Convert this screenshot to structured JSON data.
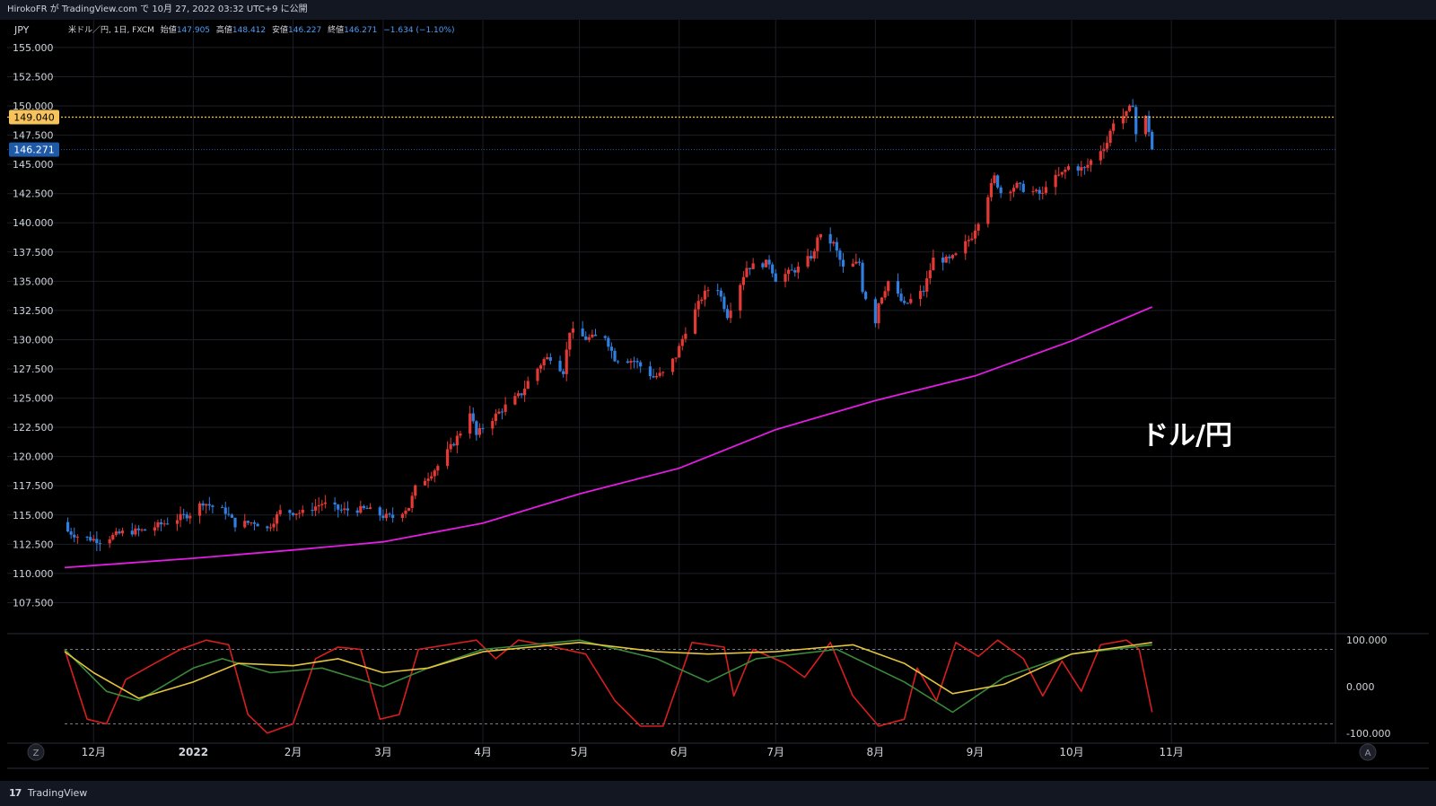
{
  "header": {
    "publish_line": "HirokoFR が TradingView.com で 10月 27, 2022 03:32 UTC+9 に公開"
  },
  "footer": {
    "brand": "TradingView",
    "logo_glyph": "17"
  },
  "chart_data": {
    "type": "candlestick",
    "currency_label": "JPY",
    "instrument": "米ドル／円, 1日, FXCM",
    "ohlc_labels": {
      "open": "始値",
      "high": "高値",
      "low": "安値",
      "close": "終値"
    },
    "ohlc_values": {
      "open": "147.905",
      "high": "148.412",
      "low": "146.227",
      "close": "146.271",
      "change": "−1.634 (−1.10%)"
    },
    "watermark": "ドル/円",
    "price_axis": {
      "ticks": [
        "155.000",
        "152.500",
        "150.000",
        "147.500",
        "145.000",
        "142.500",
        "140.000",
        "137.500",
        "135.000",
        "132.500",
        "130.000",
        "127.500",
        "125.000",
        "122.500",
        "120.000",
        "117.500",
        "115.000",
        "112.500",
        "110.000",
        "107.500"
      ],
      "range": [
        105.0,
        156.3
      ]
    },
    "horizontal_line": {
      "value": 149.04,
      "label": "149.040",
      "color": "#f7c35c"
    },
    "last_price": {
      "value": 146.271,
      "label": "146.271",
      "color": "#1e5aa8"
    },
    "time_axis": {
      "labels": [
        "12月",
        "2022",
        "2月",
        "3月",
        "4月",
        "5月",
        "6月",
        "7月",
        "8月",
        "9月",
        "10月",
        "11月"
      ],
      "label_dates": [
        "2021-12-01",
        "2022-01-01",
        "2022-02-01",
        "2022-03-01",
        "2022-04-01",
        "2022-05-01",
        "2022-06-01",
        "2022-07-01",
        "2022-08-01",
        "2022-09-01",
        "2022-10-01",
        "2022-11-01"
      ],
      "range": [
        "2021-11-22",
        "2022-12-22"
      ]
    },
    "candles_close_keypoints": [
      [
        "2021-11-23",
        113.6
      ],
      [
        "2021-11-26",
        113.2
      ],
      [
        "2021-12-03",
        112.8
      ],
      [
        "2021-12-10",
        113.5
      ],
      [
        "2021-12-17",
        113.7
      ],
      [
        "2021-12-24",
        114.4
      ],
      [
        "2021-12-31",
        115.1
      ],
      [
        "2022-01-04",
        116.1
      ],
      [
        "2022-01-07",
        115.7
      ],
      [
        "2022-01-11",
        115.3
      ],
      [
        "2022-01-14",
        114.2
      ],
      [
        "2022-01-20",
        114.4
      ],
      [
        "2022-01-24",
        113.8
      ],
      [
        "2022-01-28",
        115.3
      ],
      [
        "2022-02-04",
        115.2
      ],
      [
        "2022-02-10",
        116.0
      ],
      [
        "2022-02-16",
        115.4
      ],
      [
        "2022-02-24",
        115.5
      ],
      [
        "2022-03-01",
        114.9
      ],
      [
        "2022-03-04",
        114.8
      ],
      [
        "2022-03-09",
        115.7
      ],
      [
        "2022-03-11",
        117.3
      ],
      [
        "2022-03-16",
        118.6
      ],
      [
        "2022-03-18",
        119.2
      ],
      [
        "2022-03-23",
        121.2
      ],
      [
        "2022-03-25",
        122.1
      ],
      [
        "2022-03-28",
        123.9
      ],
      [
        "2022-03-30",
        121.8
      ],
      [
        "2022-04-01",
        122.5
      ],
      [
        "2022-04-08",
        124.3
      ],
      [
        "2022-04-13",
        125.4
      ],
      [
        "2022-04-15",
        126.4
      ],
      [
        "2022-04-20",
        128.3
      ],
      [
        "2022-04-22",
        128.5
      ],
      [
        "2022-04-26",
        127.3
      ],
      [
        "2022-04-28",
        130.8
      ],
      [
        "2022-05-03",
        130.1
      ],
      [
        "2022-05-09",
        130.3
      ],
      [
        "2022-05-12",
        128.4
      ],
      [
        "2022-05-18",
        128.2
      ],
      [
        "2022-05-24",
        126.8
      ],
      [
        "2022-05-27",
        127.1
      ],
      [
        "2022-05-31",
        128.6
      ],
      [
        "2022-06-03",
        130.8
      ],
      [
        "2022-06-08",
        133.6
      ],
      [
        "2022-06-10",
        134.3
      ],
      [
        "2022-06-13",
        134.4
      ],
      [
        "2022-06-16",
        132.1
      ],
      [
        "2022-06-22",
        136.2
      ],
      [
        "2022-06-29",
        136.6
      ],
      [
        "2022-07-01",
        135.2
      ],
      [
        "2022-07-08",
        136.1
      ],
      [
        "2022-07-13",
        137.4
      ],
      [
        "2022-07-14",
        138.9
      ],
      [
        "2022-07-19",
        138.2
      ],
      [
        "2022-07-22",
        136.1
      ],
      [
        "2022-07-27",
        136.6
      ],
      [
        "2022-07-28",
        134.3
      ],
      [
        "2022-08-01",
        131.6
      ],
      [
        "2022-08-02",
        133.2
      ],
      [
        "2022-08-05",
        135.0
      ],
      [
        "2022-08-10",
        132.9
      ],
      [
        "2022-08-12",
        133.4
      ],
      [
        "2022-08-16",
        134.2
      ],
      [
        "2022-08-19",
        136.9
      ],
      [
        "2022-08-24",
        136.8
      ],
      [
        "2022-08-26",
        137.2
      ],
      [
        "2022-08-31",
        138.9
      ],
      [
        "2022-09-02",
        140.2
      ],
      [
        "2022-09-07",
        143.9
      ],
      [
        "2022-09-09",
        142.6
      ],
      [
        "2022-09-14",
        143.2
      ],
      [
        "2022-09-16",
        142.9
      ],
      [
        "2022-09-22",
        142.4
      ],
      [
        "2022-09-23",
        143.3
      ],
      [
        "2022-09-28",
        144.2
      ],
      [
        "2022-09-30",
        144.8
      ],
      [
        "2022-10-05",
        144.6
      ],
      [
        "2022-10-07",
        145.3
      ],
      [
        "2022-10-12",
        146.9
      ],
      [
        "2022-10-14",
        148.7
      ],
      [
        "2022-10-18",
        149.3
      ],
      [
        "2022-10-20",
        150.2
      ],
      [
        "2022-10-21",
        147.6
      ],
      [
        "2022-10-24",
        149.0
      ],
      [
        "2022-10-25",
        147.9
      ],
      [
        "2022-10-26",
        146.27
      ]
    ],
    "moving_average": {
      "color": "#e21de2",
      "points": [
        [
          "2021-11-22",
          110.5
        ],
        [
          "2022-01-01",
          111.3
        ],
        [
          "2022-02-01",
          112.0
        ],
        [
          "2022-03-01",
          112.7
        ],
        [
          "2022-04-01",
          114.3
        ],
        [
          "2022-05-01",
          116.8
        ],
        [
          "2022-06-01",
          119.0
        ],
        [
          "2022-07-01",
          122.3
        ],
        [
          "2022-08-01",
          124.8
        ],
        [
          "2022-09-01",
          126.9
        ],
        [
          "2022-10-01",
          129.9
        ],
        [
          "2022-10-26",
          132.8
        ]
      ]
    },
    "oscillator": {
      "axis_ticks": [
        "100.000",
        "0.000",
        "-100.000"
      ],
      "range": [
        -110,
        110
      ],
      "levels": [
        80,
        -80
      ],
      "series": [
        {
          "color": "#d91e1e",
          "points": [
            [
              "2021-11-22",
              80
            ],
            [
              "2021-11-29",
              -70
            ],
            [
              "2021-12-05",
              -80
            ],
            [
              "2021-12-11",
              15
            ],
            [
              "2021-12-20",
              50
            ],
            [
              "2021-12-28",
              80
            ],
            [
              "2022-01-05",
              100
            ],
            [
              "2022-01-12",
              90
            ],
            [
              "2022-01-18",
              -60
            ],
            [
              "2022-01-24",
              -100
            ],
            [
              "2022-02-01",
              -80
            ],
            [
              "2022-02-08",
              60
            ],
            [
              "2022-02-15",
              85
            ],
            [
              "2022-02-22",
              80
            ],
            [
              "2022-02-28",
              -70
            ],
            [
              "2022-03-06",
              -60
            ],
            [
              "2022-03-12",
              80
            ],
            [
              "2022-03-30",
              100
            ],
            [
              "2022-04-05",
              60
            ],
            [
              "2022-04-12",
              100
            ],
            [
              "2022-04-20",
              90
            ],
            [
              "2022-05-03",
              70
            ],
            [
              "2022-05-12",
              -30
            ],
            [
              "2022-05-20",
              -85
            ],
            [
              "2022-05-27",
              -85
            ],
            [
              "2022-06-05",
              95
            ],
            [
              "2022-06-15",
              85
            ],
            [
              "2022-06-18",
              -20
            ],
            [
              "2022-06-24",
              80
            ],
            [
              "2022-07-04",
              50
            ],
            [
              "2022-07-10",
              20
            ],
            [
              "2022-07-18",
              95
            ],
            [
              "2022-07-25",
              -20
            ],
            [
              "2022-08-02",
              -85
            ],
            [
              "2022-08-10",
              -70
            ],
            [
              "2022-08-14",
              40
            ],
            [
              "2022-08-20",
              -30
            ],
            [
              "2022-08-26",
              95
            ],
            [
              "2022-09-02",
              65
            ],
            [
              "2022-09-08",
              100
            ],
            [
              "2022-09-16",
              60
            ],
            [
              "2022-09-22",
              -20
            ],
            [
              "2022-09-28",
              55
            ],
            [
              "2022-10-04",
              -10
            ],
            [
              "2022-10-10",
              90
            ],
            [
              "2022-10-18",
              100
            ],
            [
              "2022-10-22",
              80
            ],
            [
              "2022-10-26",
              -55
            ]
          ]
        },
        {
          "color": "#3a8a3a",
          "points": [
            [
              "2021-11-22",
              80
            ],
            [
              "2021-12-05",
              -10
            ],
            [
              "2021-12-15",
              -30
            ],
            [
              "2022-01-01",
              40
            ],
            [
              "2022-01-10",
              60
            ],
            [
              "2022-01-25",
              30
            ],
            [
              "2022-02-10",
              40
            ],
            [
              "2022-03-01",
              0
            ],
            [
              "2022-03-15",
              40
            ],
            [
              "2022-04-01",
              80
            ],
            [
              "2022-05-01",
              100
            ],
            [
              "2022-05-25",
              60
            ],
            [
              "2022-06-10",
              10
            ],
            [
              "2022-06-25",
              60
            ],
            [
              "2022-07-20",
              80
            ],
            [
              "2022-08-10",
              10
            ],
            [
              "2022-08-25",
              -55
            ],
            [
              "2022-09-10",
              20
            ],
            [
              "2022-10-01",
              70
            ],
            [
              "2022-10-26",
              90
            ]
          ]
        },
        {
          "color": "#e3c43c",
          "points": [
            [
              "2021-11-22",
              75
            ],
            [
              "2021-12-01",
              30
            ],
            [
              "2021-12-15",
              -25
            ],
            [
              "2022-01-01",
              10
            ],
            [
              "2022-01-15",
              50
            ],
            [
              "2022-02-01",
              45
            ],
            [
              "2022-02-15",
              60
            ],
            [
              "2022-03-01",
              30
            ],
            [
              "2022-03-15",
              40
            ],
            [
              "2022-04-01",
              75
            ],
            [
              "2022-05-01",
              95
            ],
            [
              "2022-05-25",
              75
            ],
            [
              "2022-06-10",
              70
            ],
            [
              "2022-07-01",
              75
            ],
            [
              "2022-07-25",
              90
            ],
            [
              "2022-08-10",
              50
            ],
            [
              "2022-08-25",
              -15
            ],
            [
              "2022-09-10",
              5
            ],
            [
              "2022-10-01",
              70
            ],
            [
              "2022-10-26",
              95
            ]
          ]
        }
      ]
    }
  }
}
